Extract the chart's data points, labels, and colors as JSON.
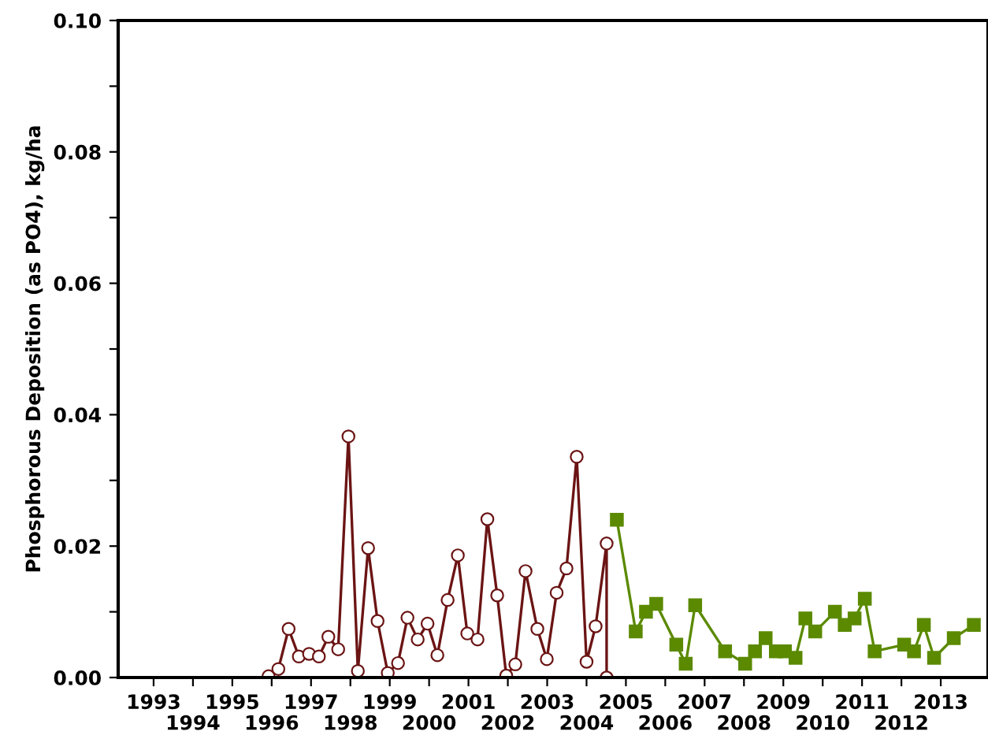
{
  "chart_data": {
    "type": "line",
    "ylabel": "Phosphorous Deposition (as PO4), kg/ha",
    "xlim": [
      1992.1,
      2014.2
    ],
    "xticks": [
      1993,
      {
        "value": 1994,
        "label": null
      },
      1995,
      {
        "value": 1996,
        "label": null
      },
      1997,
      {
        "value": 1998,
        "label": null
      },
      1999,
      {
        "value": 2000,
        "label": null
      },
      2001,
      {
        "value": 2002,
        "label": null
      },
      2003,
      {
        "value": 2004,
        "label": null
      },
      2005,
      {
        "value": 2006,
        "label": null
      },
      2007,
      {
        "value": 2008,
        "label": null
      },
      2009,
      {
        "value": 2010,
        "label": null
      },
      2011,
      {
        "value": 2012,
        "label": null
      },
      2013
    ],
    "x2lim": [
      1992.1,
      2014.2
    ],
    "x2ticks": [
      1994,
      1996,
      1998,
      2000,
      2002,
      2004,
      2006,
      2008,
      2010,
      2012
    ],
    "ylim": [
      0,
      0.1
    ],
    "yticks": [
      {
        "value": 0,
        "label": "0.00"
      },
      {
        "value": 0.01,
        "label": null
      },
      {
        "value": 0.02,
        "label": "0.02"
      },
      {
        "value": 0.03,
        "label": null
      },
      {
        "value": 0.04,
        "label": "0.04"
      },
      {
        "value": 0.05,
        "label": null
      },
      {
        "value": 0.06,
        "label": "0.06"
      },
      {
        "value": 0.07,
        "label": null
      },
      {
        "value": 0.08,
        "label": "0.08"
      },
      {
        "value": 0.09,
        "label": null
      },
      {
        "value": 0.1,
        "label": "0.10"
      }
    ],
    "grid": false,
    "legend": false,
    "series": [
      {
        "color": "#6b1414",
        "marker": "circle",
        "x": [
          1995.92,
          1996.17,
          1996.43,
          1996.69,
          1996.95,
          1997.2,
          1997.44,
          1997.69,
          1997.95,
          1998.19,
          1998.45,
          1998.69,
          1998.95,
          1999.21,
          1999.45,
          1999.71,
          1999.96,
          2000.21,
          2000.47,
          2000.73,
          2000.97,
          2001.23,
          2001.48,
          2001.73,
          2001.96,
          2002.19,
          2002.45,
          2002.75,
          2002.99,
          2003.24,
          2003.49,
          2003.75,
          2004.0,
          2004.23,
          2004.51,
          2004.51
        ],
        "values": [
          0.0002,
          0.0013,
          0.0074,
          0.0032,
          0.0036,
          0.0032,
          0.0062,
          0.0043,
          0.0367,
          0.001,
          0.0197,
          0.0086,
          0.0007,
          0.0022,
          0.0091,
          0.0058,
          0.0082,
          0.0034,
          0.0118,
          0.0186,
          0.0067,
          0.0058,
          0.0241,
          0.0125,
          0.0003,
          0.002,
          0.0162,
          0.0074,
          0.0028,
          0.0129,
          0.0166,
          0.0336,
          0.0024,
          0.0078,
          0.0204,
          0.0
        ]
      },
      {
        "color": "#5b8a00",
        "marker": "square",
        "x": [
          2004.77,
          2005.25,
          2005.51,
          2005.77,
          2006.28,
          2006.52,
          2006.76,
          2007.52,
          2008.03,
          2008.28,
          2008.55,
          2008.81,
          2009.04,
          2009.31,
          2009.56,
          2009.81,
          2010.31,
          2010.56,
          2010.81,
          2011.07,
          2011.32,
          2012.07,
          2012.32,
          2012.57,
          2012.83,
          2013.33,
          2013.84
        ],
        "values": [
          0.024,
          0.007,
          0.01,
          0.0112,
          0.005,
          0.0021,
          0.011,
          0.004,
          0.0021,
          0.004,
          0.006,
          0.004,
          0.004,
          0.003,
          0.009,
          0.007,
          0.01,
          0.008,
          0.009,
          0.012,
          0.004,
          0.005,
          0.004,
          0.008,
          0.003,
          0.006,
          0.008
        ]
      }
    ]
  }
}
